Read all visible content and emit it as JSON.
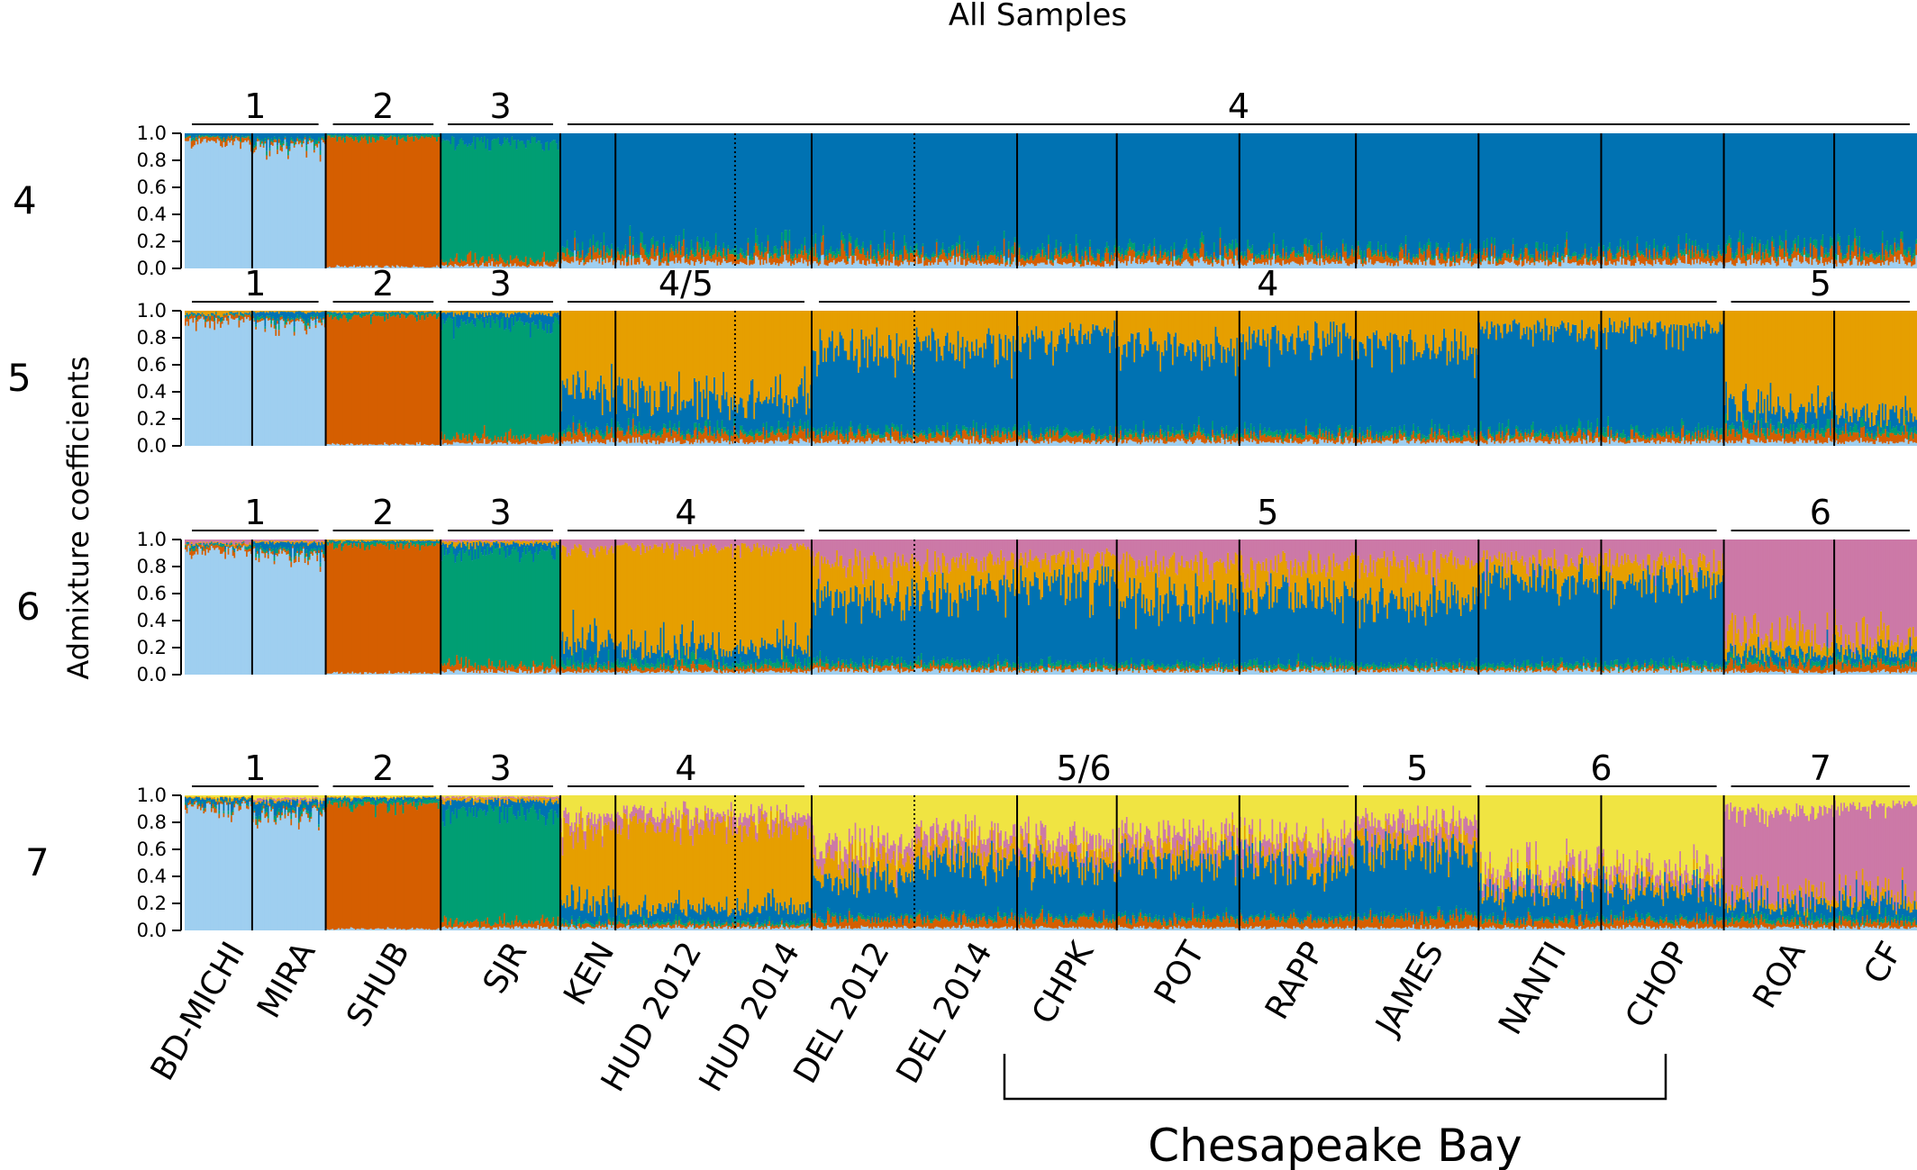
{
  "chart_data": {
    "type": "bar",
    "subtype": "stacked-admixture",
    "title": "All Samples",
    "ylabel": "Admixture coefficients",
    "ylim": [
      0,
      1.0
    ],
    "yticks": [
      "0.0",
      "0.2",
      "0.4",
      "0.6",
      "0.8",
      "1.0"
    ],
    "populations": [
      "BD-MICHI",
      "MIRA",
      "SHUB",
      "SJR",
      "KEN",
      "HUD 2012",
      "HUD 2014",
      "DEL 2012",
      "DEL 2014",
      "CHPK",
      "POT",
      "RAPP",
      "JAMES",
      "NANTI",
      "CHOP",
      "ROA",
      "CF"
    ],
    "population_sizes": [
      44,
      48,
      75,
      78,
      36,
      78,
      50,
      67,
      67,
      65,
      80,
      76,
      80,
      80,
      80,
      72,
      54
    ],
    "population_boundaries": [
      "solid",
      "solid",
      "solid",
      "solid",
      "solid",
      "dotted",
      "solid",
      "dotted",
      "solid",
      "solid",
      "solid",
      "solid",
      "solid",
      "solid",
      "solid",
      "solid"
    ],
    "cluster_colors": {
      "light_blue": "#9fcff0",
      "vermillion": "#d55e00",
      "green": "#009e73",
      "blue": "#0072b2",
      "orange": "#e69f00",
      "pink": "#cc79a7",
      "yellow": "#f0e442"
    },
    "group_label": "Chesapeake Bay",
    "group_range": [
      "CHPK",
      "CHOP"
    ],
    "panels": [
      {
        "k": "4",
        "clusters": [
          {
            "label": "1",
            "from": "BD-MICHI",
            "to": "MIRA"
          },
          {
            "label": "2",
            "from": "SHUB",
            "to": "SHUB"
          },
          {
            "label": "3",
            "from": "SJR",
            "to": "SJR"
          },
          {
            "label": "4",
            "from": "KEN",
            "to": "CF"
          }
        ],
        "mean_proportions": {
          "BD-MICHI": {
            "light_blue": 0.94,
            "vermillion": 0.03,
            "green": 0.01,
            "blue": 0.02
          },
          "MIRA": {
            "light_blue": 0.91,
            "vermillion": 0.02,
            "green": 0.02,
            "blue": 0.05
          },
          "SHUB": {
            "light_blue": 0.01,
            "vermillion": 0.96,
            "green": 0.02,
            "blue": 0.01
          },
          "SJR": {
            "light_blue": 0.02,
            "vermillion": 0.04,
            "green": 0.88,
            "blue": 0.06
          },
          "KEN": {
            "light_blue": 0.05,
            "vermillion": 0.05,
            "green": 0.04,
            "blue": 0.86
          },
          "HUD 2012": {
            "light_blue": 0.04,
            "vermillion": 0.06,
            "green": 0.04,
            "blue": 0.86
          },
          "HUD 2014": {
            "light_blue": 0.04,
            "vermillion": 0.06,
            "green": 0.04,
            "blue": 0.86
          },
          "DEL 2012": {
            "light_blue": 0.04,
            "vermillion": 0.06,
            "green": 0.04,
            "blue": 0.86
          },
          "DEL 2014": {
            "light_blue": 0.04,
            "vermillion": 0.05,
            "green": 0.03,
            "blue": 0.88
          },
          "CHPK": {
            "light_blue": 0.03,
            "vermillion": 0.05,
            "green": 0.03,
            "blue": 0.89
          },
          "POT": {
            "light_blue": 0.04,
            "vermillion": 0.05,
            "green": 0.03,
            "blue": 0.88
          },
          "RAPP": {
            "light_blue": 0.04,
            "vermillion": 0.05,
            "green": 0.03,
            "blue": 0.88
          },
          "JAMES": {
            "light_blue": 0.04,
            "vermillion": 0.05,
            "green": 0.03,
            "blue": 0.88
          },
          "NANTI": {
            "light_blue": 0.04,
            "vermillion": 0.05,
            "green": 0.03,
            "blue": 0.88
          },
          "CHOP": {
            "light_blue": 0.04,
            "vermillion": 0.06,
            "green": 0.03,
            "blue": 0.87
          },
          "ROA": {
            "light_blue": 0.04,
            "vermillion": 0.06,
            "green": 0.04,
            "blue": 0.86
          },
          "CF": {
            "light_blue": 0.04,
            "vermillion": 0.06,
            "green": 0.04,
            "blue": 0.86
          }
        }
      },
      {
        "k": "5",
        "clusters": [
          {
            "label": "1",
            "from": "BD-MICHI",
            "to": "MIRA"
          },
          {
            "label": "2",
            "from": "SHUB",
            "to": "SHUB"
          },
          {
            "label": "3",
            "from": "SJR",
            "to": "SJR"
          },
          {
            "label": "4/5",
            "from": "KEN",
            "to": "HUD 2014"
          },
          {
            "label": "4",
            "from": "DEL 2012",
            "to": "CHOP"
          },
          {
            "label": "5",
            "from": "ROA",
            "to": "CF"
          }
        ],
        "mean_proportions": {
          "BD-MICHI": {
            "light_blue": 0.93,
            "vermillion": 0.03,
            "green": 0.01,
            "blue": 0.01,
            "orange": 0.02
          },
          "MIRA": {
            "light_blue": 0.9,
            "vermillion": 0.02,
            "green": 0.02,
            "blue": 0.05,
            "orange": 0.01
          },
          "SHUB": {
            "light_blue": 0.01,
            "vermillion": 0.95,
            "green": 0.02,
            "blue": 0.01,
            "orange": 0.01
          },
          "SJR": {
            "light_blue": 0.02,
            "vermillion": 0.04,
            "green": 0.86,
            "blue": 0.06,
            "orange": 0.02
          },
          "KEN": {
            "light_blue": 0.03,
            "vermillion": 0.06,
            "green": 0.03,
            "blue": 0.3,
            "orange": 0.58
          },
          "HUD 2012": {
            "light_blue": 0.03,
            "vermillion": 0.06,
            "green": 0.03,
            "blue": 0.22,
            "orange": 0.66
          },
          "HUD 2014": {
            "light_blue": 0.03,
            "vermillion": 0.06,
            "green": 0.03,
            "blue": 0.24,
            "orange": 0.64
          },
          "DEL 2012": {
            "light_blue": 0.03,
            "vermillion": 0.05,
            "green": 0.03,
            "blue": 0.6,
            "orange": 0.29
          },
          "DEL 2014": {
            "light_blue": 0.03,
            "vermillion": 0.05,
            "green": 0.03,
            "blue": 0.63,
            "orange": 0.26
          },
          "CHPK": {
            "light_blue": 0.03,
            "vermillion": 0.04,
            "green": 0.03,
            "blue": 0.7,
            "orange": 0.2
          },
          "POT": {
            "light_blue": 0.03,
            "vermillion": 0.04,
            "green": 0.03,
            "blue": 0.64,
            "orange": 0.26
          },
          "RAPP": {
            "light_blue": 0.03,
            "vermillion": 0.04,
            "green": 0.03,
            "blue": 0.7,
            "orange": 0.2
          },
          "JAMES": {
            "light_blue": 0.03,
            "vermillion": 0.04,
            "green": 0.03,
            "blue": 0.62,
            "orange": 0.28
          },
          "NANTI": {
            "light_blue": 0.03,
            "vermillion": 0.04,
            "green": 0.03,
            "blue": 0.76,
            "orange": 0.14
          },
          "CHOP": {
            "light_blue": 0.03,
            "vermillion": 0.04,
            "green": 0.03,
            "blue": 0.76,
            "orange": 0.14
          },
          "ROA": {
            "light_blue": 0.03,
            "vermillion": 0.07,
            "green": 0.04,
            "blue": 0.14,
            "orange": 0.72
          },
          "CF": {
            "light_blue": 0.03,
            "vermillion": 0.06,
            "green": 0.04,
            "blue": 0.1,
            "orange": 0.77
          }
        }
      },
      {
        "k": "6",
        "clusters": [
          {
            "label": "1",
            "from": "BD-MICHI",
            "to": "MIRA"
          },
          {
            "label": "2",
            "from": "SHUB",
            "to": "SHUB"
          },
          {
            "label": "3",
            "from": "SJR",
            "to": "SJR"
          },
          {
            "label": "4",
            "from": "KEN",
            "to": "HUD 2014"
          },
          {
            "label": "5",
            "from": "DEL 2012",
            "to": "CHOP"
          },
          {
            "label": "6",
            "from": "ROA",
            "to": "CF"
          }
        ],
        "mean_proportions": {
          "BD-MICHI": {
            "light_blue": 0.92,
            "vermillion": 0.03,
            "green": 0.01,
            "blue": 0.01,
            "orange": 0.01,
            "pink": 0.02
          },
          "MIRA": {
            "light_blue": 0.89,
            "vermillion": 0.02,
            "green": 0.02,
            "blue": 0.05,
            "orange": 0.01,
            "pink": 0.01
          },
          "SHUB": {
            "light_blue": 0.01,
            "vermillion": 0.95,
            "green": 0.02,
            "blue": 0.01,
            "orange": 0.01,
            "pink": 0.0
          },
          "SJR": {
            "light_blue": 0.02,
            "vermillion": 0.04,
            "green": 0.86,
            "blue": 0.05,
            "orange": 0.02,
            "pink": 0.01
          },
          "KEN": {
            "light_blue": 0.02,
            "vermillion": 0.03,
            "green": 0.04,
            "blue": 0.16,
            "orange": 0.67,
            "pink": 0.08
          },
          "HUD 2012": {
            "light_blue": 0.02,
            "vermillion": 0.03,
            "green": 0.04,
            "blue": 0.1,
            "orange": 0.75,
            "pink": 0.06
          },
          "HUD 2014": {
            "light_blue": 0.02,
            "vermillion": 0.03,
            "green": 0.04,
            "blue": 0.12,
            "orange": 0.73,
            "pink": 0.06
          },
          "DEL 2012": {
            "light_blue": 0.03,
            "vermillion": 0.03,
            "green": 0.03,
            "blue": 0.48,
            "orange": 0.26,
            "pink": 0.17
          },
          "DEL 2014": {
            "light_blue": 0.03,
            "vermillion": 0.03,
            "green": 0.03,
            "blue": 0.52,
            "orange": 0.22,
            "pink": 0.17
          },
          "CHPK": {
            "light_blue": 0.03,
            "vermillion": 0.02,
            "green": 0.03,
            "blue": 0.58,
            "orange": 0.2,
            "pink": 0.14
          },
          "POT": {
            "light_blue": 0.03,
            "vermillion": 0.02,
            "green": 0.03,
            "blue": 0.48,
            "orange": 0.26,
            "pink": 0.18
          },
          "RAPP": {
            "light_blue": 0.03,
            "vermillion": 0.02,
            "green": 0.03,
            "blue": 0.52,
            "orange": 0.22,
            "pink": 0.18
          },
          "JAMES": {
            "light_blue": 0.03,
            "vermillion": 0.02,
            "green": 0.03,
            "blue": 0.46,
            "orange": 0.28,
            "pink": 0.18
          },
          "NANTI": {
            "light_blue": 0.03,
            "vermillion": 0.02,
            "green": 0.03,
            "blue": 0.62,
            "orange": 0.14,
            "pink": 0.16
          },
          "CHOP": {
            "light_blue": 0.03,
            "vermillion": 0.02,
            "green": 0.03,
            "blue": 0.62,
            "orange": 0.14,
            "pink": 0.16
          },
          "ROA": {
            "light_blue": 0.02,
            "vermillion": 0.05,
            "green": 0.03,
            "blue": 0.06,
            "orange": 0.14,
            "pink": 0.7
          },
          "CF": {
            "light_blue": 0.02,
            "vermillion": 0.05,
            "green": 0.03,
            "blue": 0.06,
            "orange": 0.1,
            "pink": 0.74
          }
        }
      },
      {
        "k": "7",
        "clusters": [
          {
            "label": "1",
            "from": "BD-MICHI",
            "to": "MIRA"
          },
          {
            "label": "2",
            "from": "SHUB",
            "to": "SHUB"
          },
          {
            "label": "3",
            "from": "SJR",
            "to": "SJR"
          },
          {
            "label": "4",
            "from": "KEN",
            "to": "HUD 2014"
          },
          {
            "label": "5/6",
            "from": "DEL 2012",
            "to": "RAPP"
          },
          {
            "label": "5",
            "from": "JAMES",
            "to": "JAMES"
          },
          {
            "label": "6",
            "from": "NANTI",
            "to": "CHOP"
          },
          {
            "label": "7",
            "from": "ROA",
            "to": "CF"
          }
        ],
        "mean_proportions": {
          "BD-MICHI": {
            "light_blue": 0.92,
            "vermillion": 0.02,
            "green": 0.01,
            "blue": 0.03,
            "orange": 0.01,
            "pink": 0.0,
            "yellow": 0.01
          },
          "MIRA": {
            "light_blue": 0.86,
            "vermillion": 0.02,
            "green": 0.02,
            "blue": 0.06,
            "orange": 0.01,
            "pink": 0.01,
            "yellow": 0.02
          },
          "SHUB": {
            "light_blue": 0.01,
            "vermillion": 0.92,
            "green": 0.03,
            "blue": 0.02,
            "orange": 0.01,
            "pink": 0.0,
            "yellow": 0.01
          },
          "SJR": {
            "light_blue": 0.02,
            "vermillion": 0.04,
            "green": 0.82,
            "blue": 0.08,
            "orange": 0.02,
            "pink": 0.01,
            "yellow": 0.01
          },
          "KEN": {
            "light_blue": 0.02,
            "vermillion": 0.02,
            "green": 0.02,
            "blue": 0.14,
            "orange": 0.56,
            "pink": 0.08,
            "yellow": 0.16
          },
          "HUD 2012": {
            "light_blue": 0.02,
            "vermillion": 0.02,
            "green": 0.02,
            "blue": 0.1,
            "orange": 0.64,
            "pink": 0.08,
            "yellow": 0.12
          },
          "HUD 2014": {
            "light_blue": 0.02,
            "vermillion": 0.02,
            "green": 0.02,
            "blue": 0.12,
            "orange": 0.6,
            "pink": 0.08,
            "yellow": 0.14
          },
          "DEL 2012": {
            "light_blue": 0.02,
            "vermillion": 0.06,
            "green": 0.02,
            "blue": 0.28,
            "orange": 0.14,
            "pink": 0.1,
            "yellow": 0.38
          },
          "DEL 2014": {
            "light_blue": 0.02,
            "vermillion": 0.06,
            "green": 0.02,
            "blue": 0.4,
            "orange": 0.12,
            "pink": 0.1,
            "yellow": 0.28
          },
          "CHPK": {
            "light_blue": 0.02,
            "vermillion": 0.06,
            "green": 0.02,
            "blue": 0.36,
            "orange": 0.1,
            "pink": 0.1,
            "yellow": 0.34
          },
          "POT": {
            "light_blue": 0.02,
            "vermillion": 0.06,
            "green": 0.02,
            "blue": 0.42,
            "orange": 0.1,
            "pink": 0.1,
            "yellow": 0.28
          },
          "RAPP": {
            "light_blue": 0.02,
            "vermillion": 0.06,
            "green": 0.02,
            "blue": 0.4,
            "orange": 0.1,
            "pink": 0.1,
            "yellow": 0.3
          },
          "JAMES": {
            "light_blue": 0.02,
            "vermillion": 0.07,
            "green": 0.02,
            "blue": 0.5,
            "orange": 0.1,
            "pink": 0.11,
            "yellow": 0.18
          },
          "NANTI": {
            "light_blue": 0.02,
            "vermillion": 0.05,
            "green": 0.02,
            "blue": 0.2,
            "orange": 0.06,
            "pink": 0.08,
            "yellow": 0.57
          },
          "CHOP": {
            "light_blue": 0.02,
            "vermillion": 0.05,
            "green": 0.02,
            "blue": 0.22,
            "orange": 0.06,
            "pink": 0.08,
            "yellow": 0.55
          },
          "ROA": {
            "light_blue": 0.02,
            "vermillion": 0.04,
            "green": 0.03,
            "blue": 0.1,
            "orange": 0.06,
            "pink": 0.63,
            "yellow": 0.12
          },
          "CF": {
            "light_blue": 0.02,
            "vermillion": 0.04,
            "green": 0.03,
            "blue": 0.12,
            "orange": 0.06,
            "pink": 0.65,
            "yellow": 0.08
          }
        }
      }
    ]
  }
}
